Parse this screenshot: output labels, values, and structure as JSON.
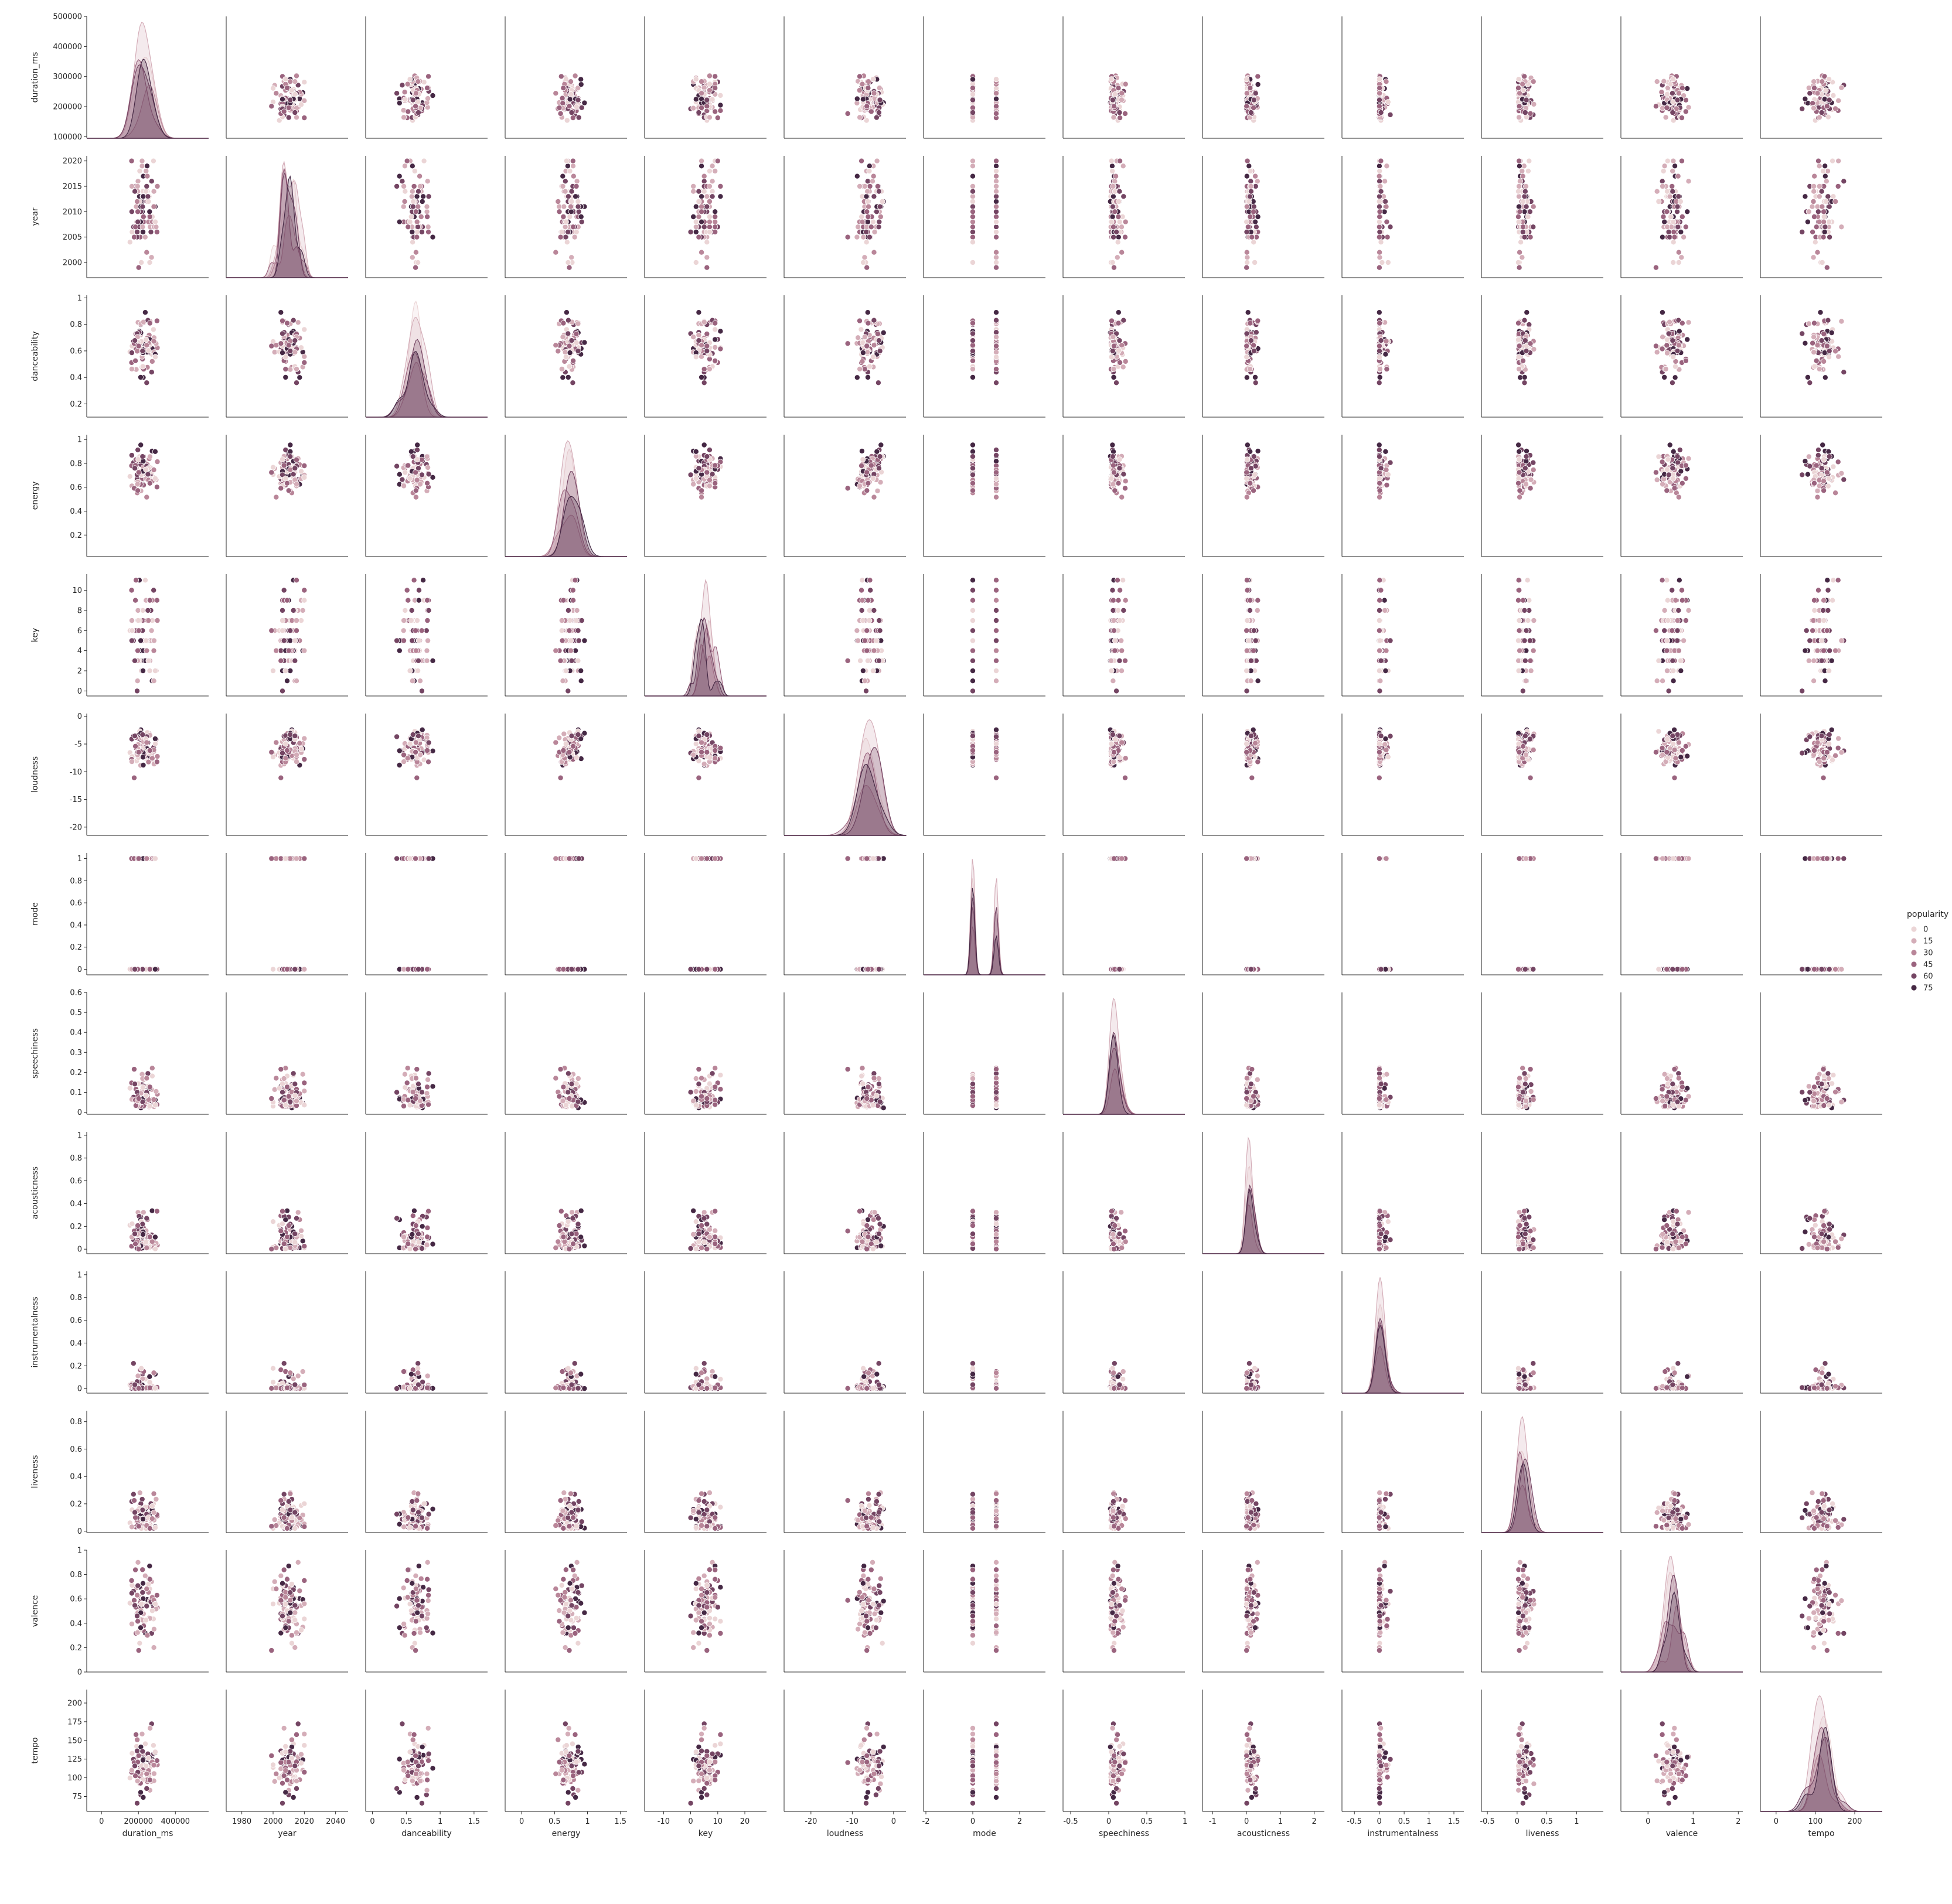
{
  "chart_data": {
    "type": "scatter",
    "kind": "pairplot",
    "hue": "popularity",
    "diagonal": "kde",
    "variables": [
      "duration_ms",
      "year",
      "danceability",
      "energy",
      "key",
      "loudness",
      "mode",
      "speechiness",
      "acousticness",
      "instrumentalness",
      "liveness",
      "valence",
      "tempo"
    ],
    "axes": {
      "duration_ms": {
        "label": "duration_ms",
        "data_range": [
          113000,
          484000
        ],
        "xlim": [
          -80000,
          580000
        ],
        "ylim": [
          95000,
          500000
        ],
        "xticks": [
          0,
          200000,
          400000
        ],
        "yticks": [
          100000,
          200000,
          300000,
          400000,
          500000
        ],
        "center": 225000,
        "spread": 50000
      },
      "year": {
        "label": "year",
        "data_range": [
          1998,
          2020
        ],
        "xlim": [
          1970,
          2048
        ],
        "ylim": [
          1997,
          2021
        ],
        "xticks": [
          1980,
          2000,
          2020,
          2040
        ],
        "yticks": [
          2000,
          2005,
          2010,
          2015,
          2020
        ],
        "center": 2010,
        "spread": 6,
        "integer": true
      },
      "danceability": {
        "label": "danceability",
        "data_range": [
          0.13,
          0.98
        ],
        "xlim": [
          -0.1,
          1.7
        ],
        "ylim": [
          0.1,
          1.02
        ],
        "xticks": [
          0.0,
          0.5,
          1.0,
          1.5
        ],
        "yticks": [
          0.2,
          0.4,
          0.6,
          0.8,
          1.0
        ],
        "center": 0.66,
        "spread": 0.15
      },
      "energy": {
        "label": "energy",
        "data_range": [
          0.05,
          1.0
        ],
        "xlim": [
          -0.25,
          1.6
        ],
        "ylim": [
          0.02,
          1.04
        ],
        "xticks": [
          0.0,
          0.5,
          1.0,
          1.5
        ],
        "yticks": [
          0.2,
          0.4,
          0.6,
          0.8,
          1.0
        ],
        "center": 0.72,
        "spread": 0.15
      },
      "key": {
        "label": "key",
        "data_range": [
          0,
          11
        ],
        "xlim": [
          -17,
          28
        ],
        "ylim": [
          -0.5,
          11.6
        ],
        "xticks": [
          -10,
          0,
          10,
          20
        ],
        "yticks": [
          0,
          2,
          4,
          6,
          8,
          10
        ],
        "center": 5.5,
        "spread": 3.5,
        "integer": true
      },
      "loudness": {
        "label": "loudness",
        "data_range": [
          -20.5,
          -0.3
        ],
        "xlim": [
          -26.5,
          3
        ],
        "ylim": [
          -21.5,
          0.5
        ],
        "xticks": [
          -20,
          -10,
          0
        ],
        "yticks": [
          -20,
          -15,
          -10,
          -5,
          0
        ],
        "center": -6,
        "spread": 2.5
      },
      "mode": {
        "label": "mode",
        "data_range": [
          0,
          1
        ],
        "xlim": [
          -2.1,
          3.1
        ],
        "ylim": [
          -0.05,
          1.05
        ],
        "xticks": [
          -2,
          0,
          2
        ],
        "yticks": [
          0.0,
          0.2,
          0.4,
          0.6,
          0.8,
          1.0
        ],
        "center": 0.5,
        "spread": 0.5,
        "integer": true
      },
      "speechiness": {
        "label": "speechiness",
        "data_range": [
          0.02,
          0.58
        ],
        "xlim": [
          -0.6,
          1.0
        ],
        "ylim": [
          -0.01,
          0.6
        ],
        "xticks": [
          -0.5,
          0.0,
          0.5,
          1.0
        ],
        "yticks": [
          0.0,
          0.1,
          0.2,
          0.3,
          0.4,
          0.5,
          0.6
        ],
        "center": 0.12,
        "spread": 0.11
      },
      "acousticness": {
        "label": "acousticness",
        "data_range": [
          0.0,
          0.98
        ],
        "xlim": [
          -1.3,
          2.3
        ],
        "ylim": [
          -0.04,
          1.03
        ],
        "xticks": [
          -1,
          0,
          1,
          2
        ],
        "yticks": [
          0.0,
          0.2,
          0.4,
          0.6,
          0.8,
          1.0
        ],
        "center": 0.15,
        "spread": 0.2
      },
      "instrumentalness": {
        "label": "instrumentalness",
        "data_range": [
          0.0,
          0.99
        ],
        "xlim": [
          -0.75,
          1.7
        ],
        "ylim": [
          -0.04,
          1.03
        ],
        "xticks": [
          -0.5,
          0.0,
          0.5,
          1.0,
          1.5
        ],
        "yticks": [
          0.0,
          0.2,
          0.4,
          0.6,
          0.8,
          1.0
        ],
        "center": 0.02,
        "spread": 0.15
      },
      "liveness": {
        "label": "liveness",
        "data_range": [
          0.02,
          0.85
        ],
        "xlim": [
          -0.6,
          1.45
        ],
        "ylim": [
          -0.01,
          0.88
        ],
        "xticks": [
          -0.5,
          0.0,
          0.5,
          1.0
        ],
        "yticks": [
          0.0,
          0.2,
          0.4,
          0.6,
          0.8
        ],
        "center": 0.18,
        "spread": 0.14
      },
      "valence": {
        "label": "valence",
        "data_range": [
          0.05,
          0.97
        ],
        "xlim": [
          -0.6,
          2.1
        ],
        "ylim": [
          0.0,
          1.0
        ],
        "xticks": [
          0,
          1,
          2
        ],
        "yticks": [
          0.0,
          0.2,
          0.4,
          0.6,
          0.8,
          1.0
        ],
        "center": 0.55,
        "spread": 0.22
      },
      "tempo": {
        "label": "tempo",
        "data_range": [
          60,
          210
        ],
        "xlim": [
          -40,
          270
        ],
        "ylim": [
          55,
          218
        ],
        "xticks": [
          0,
          100,
          200
        ],
        "yticks": [
          75,
          100,
          125,
          150,
          175,
          200
        ],
        "center": 120,
        "spread": 28
      }
    },
    "legend": {
      "title": "popularity",
      "placement": "right",
      "entries": [
        {
          "label": "0",
          "color": "#ebd5d6"
        },
        {
          "label": "15",
          "color": "#d4adb8"
        },
        {
          "label": "30",
          "color": "#b98699"
        },
        {
          "label": "45",
          "color": "#9a637e"
        },
        {
          "label": "60",
          "color": "#744563"
        },
        {
          "label": "75",
          "color": "#452844"
        }
      ]
    },
    "point_count": 90,
    "grid": false
  }
}
